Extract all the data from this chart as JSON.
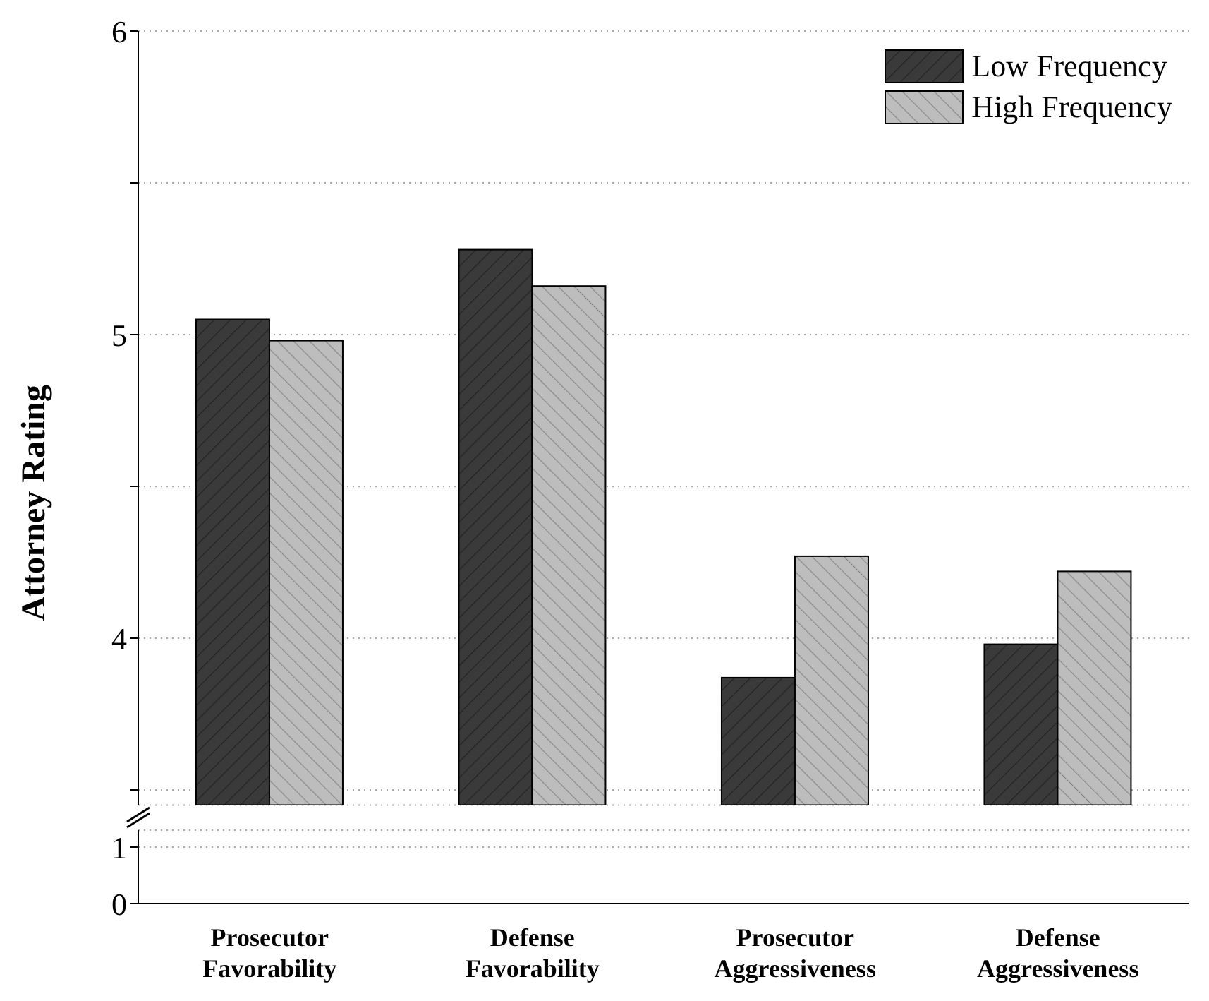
{
  "chart_data": [
    {
      "type": "bar",
      "ylabel": "Attorney Rating",
      "categories": [
        null,
        null,
        null,
        null
      ],
      "series": [
        {
          "name": "Low Frequency",
          "color": "#3a3a3a",
          "values": [
            5.05,
            5.28,
            3.87,
            3.98
          ]
        },
        {
          "name": "High Frequency",
          "color": "#bdbdbd",
          "values": [
            4.98,
            5.16,
            4.27,
            4.22
          ]
        }
      ],
      "ylim": [
        3.45,
        6
      ],
      "yticks": [
        {
          "value": 3.5,
          "label": null
        },
        4,
        {
          "value": 4.5,
          "label": null
        },
        5,
        {
          "value": 5.5,
          "label": null
        },
        6
      ],
      "grid": "y",
      "legend": "top right",
      "tick_labels": "y"
    },
    {
      "type": "bar",
      "categories": [
        "Prosecutor Favorability",
        "Defense Favorability",
        "Prosecutor Aggressiveness",
        "Defense Aggressiveness"
      ],
      "ylim": [
        0,
        1.3
      ],
      "yticks": [
        0,
        1
      ],
      "grid": "y"
    }
  ]
}
